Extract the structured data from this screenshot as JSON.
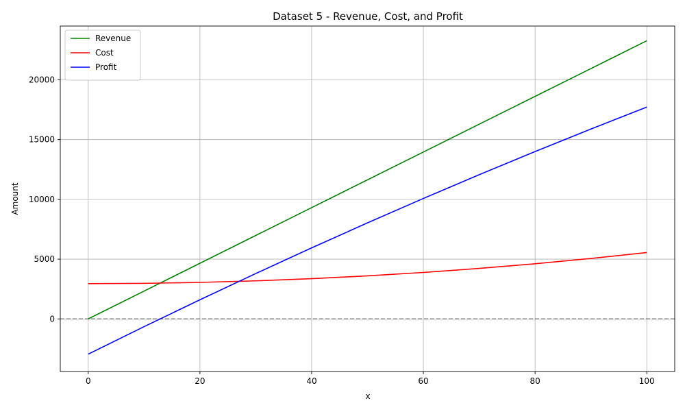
{
  "chart_data": {
    "type": "line",
    "title": "Dataset 5 - Revenue, Cost, and Profit",
    "xlabel": "x",
    "ylabel": "Amount",
    "xlim": [
      -5,
      105
    ],
    "ylim": [
      -4400,
      24500
    ],
    "x_ticks": [
      0,
      20,
      40,
      60,
      80,
      100
    ],
    "y_ticks": [
      0,
      5000,
      10000,
      15000,
      20000
    ],
    "grid": true,
    "legend_position": "top-left",
    "zero_line": {
      "y": 0,
      "color": "#808080",
      "style": "dashed"
    },
    "x": [
      0,
      10,
      20,
      30,
      40,
      50,
      60,
      70,
      80,
      90,
      100
    ],
    "series": [
      {
        "name": "Revenue",
        "color": "#008000",
        "values": [
          0,
          2327,
          4654,
          6981,
          9308,
          11635,
          13962,
          16289,
          18616,
          20943,
          23270
        ]
      },
      {
        "name": "Cost",
        "color": "#ff0000",
        "values": [
          2950,
          2976,
          3054,
          3184,
          3366,
          3600,
          3886,
          4224,
          4614,
          5056,
          5550
        ]
      },
      {
        "name": "Profit",
        "color": "#0000ff",
        "values": [
          -2950,
          -649,
          1600,
          3797,
          5942,
          8035,
          10076,
          12065,
          14002,
          15887,
          17720
        ]
      }
    ]
  }
}
